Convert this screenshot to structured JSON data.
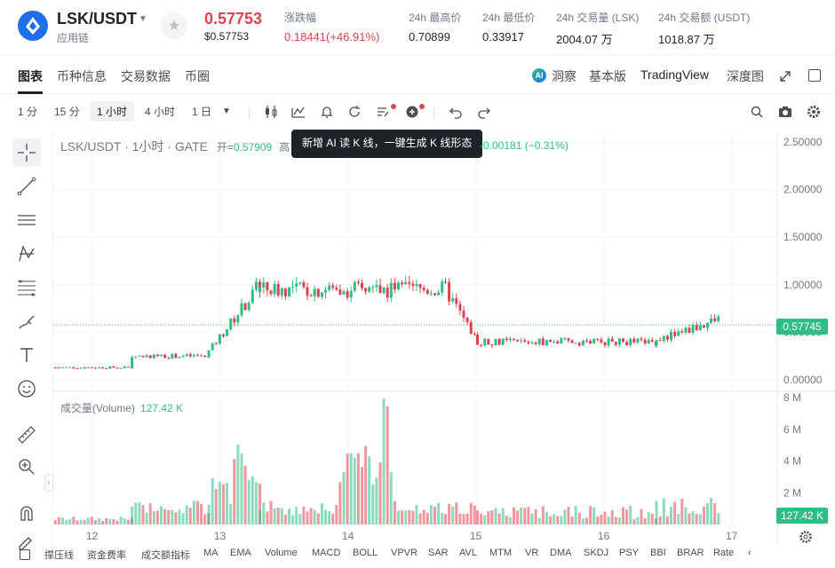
{
  "header": {
    "pair": "LSK/USDT",
    "chain_label": "应用链",
    "price": "0.57753",
    "price_usd": "$0.57753",
    "change_label": "涨跌幅",
    "change_value": "0.18441(+46.91%)",
    "high_label": "24h 最高价",
    "high_value": "0.70899",
    "low_label": "24h 最低价",
    "low_value": "0.33917",
    "vol_lsk_label": "24h 交易量 (LSK)",
    "vol_lsk_value": "2004.07 万",
    "vol_usdt_label": "24h 交易额 (USDT)",
    "vol_usdt_value": "1018.87 万"
  },
  "tabs": [
    "图表",
    "币种信息",
    "交易数据",
    "币圈"
  ],
  "right_tabs": [
    "洞察",
    "基本版",
    "TradingView",
    "深度图"
  ],
  "timeframes": [
    "1 分",
    "15 分",
    "1 小时",
    "4 小时",
    "1 日"
  ],
  "legend": {
    "title": "LSK/USDT · 1小时 · GATE",
    "open_label": "开=",
    "open_value": "0.57909",
    "partial_label": "高",
    "change": "-0.00181 (−0.31%)",
    "tooltip": "新增 AI 读 K 线，一键生成 K 线形态",
    "volume_label": "成交量(Volume)",
    "volume_value": "127.42 K"
  },
  "price_axis": [
    "2.50000",
    "2.00000",
    "1.50000",
    "1.00000",
    "0.50000",
    "0.00000"
  ],
  "volume_axis": [
    "8 M",
    "6 M",
    "4 M",
    "2 M"
  ],
  "last_price_tag": "0.57745",
  "last_volume_tag": "127.42 K",
  "time_axis": [
    "12",
    "13",
    "14",
    "15",
    "16",
    "17"
  ],
  "indicators": [
    "撑压线",
    "资金费率",
    "成交额指标",
    "MA",
    "EMA",
    "Volume",
    "MACD",
    "BOLL",
    "VPVR",
    "SAR",
    "AVL",
    "MTM",
    "VR",
    "DMA",
    "SKDJ",
    "PSY",
    "BBI",
    "BRAR",
    "Rate"
  ],
  "colors": {
    "up": "#2ebd85",
    "down": "#e0414f",
    "accent": "#1f6feb"
  },
  "chart_data": {
    "type": "candlestick",
    "title": "LSK/USDT · 1小时 · GATE",
    "price_range": [
      0,
      2.5
    ],
    "volume_range": [
      0,
      8000000
    ],
    "x_ticks": [
      "12",
      "13",
      "14",
      "15",
      "16",
      "17"
    ],
    "segments": [
      {
        "day_from": 11.7,
        "day_to": 12.3,
        "price": 0.13
      },
      {
        "day_from": 12.3,
        "day_to": 12.9,
        "price": 0.25
      },
      {
        "day_from": 12.9,
        "day_to": 13.3,
        "price": 0.95,
        "spike_high": 2.33
      },
      {
        "day_from": 13.3,
        "day_to": 14.75,
        "price": 0.95
      },
      {
        "day_from": 14.75,
        "day_to": 15.0,
        "price": 0.45
      },
      {
        "day_from": 15.0,
        "day_to": 16.4,
        "price": 0.4
      },
      {
        "day_from": 16.4,
        "day_to": 16.9,
        "price": 0.58
      }
    ],
    "last_price": 0.57745,
    "last_volume": 127420
  }
}
